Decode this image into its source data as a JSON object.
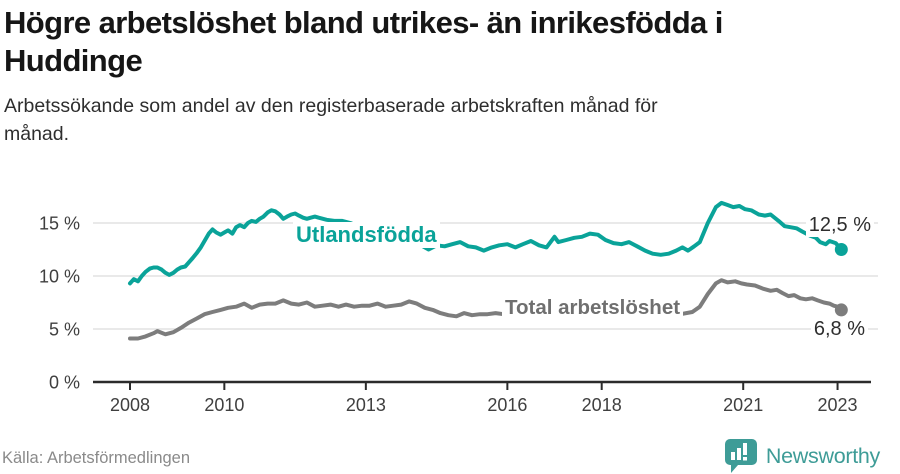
{
  "header": {
    "title_line1": "Högre arbetslöshet bland utrikes- än inrikesfödda i",
    "title_line2": "Huddinge",
    "subtitle_line1": "Arbetssökande som andel av den registerbaserade arbetskraften månad för",
    "subtitle_line2": "månad."
  },
  "footer": {
    "source": "Källa: Arbetsförmedlingen",
    "brand": "Newsworthy"
  },
  "colors": {
    "foreign_line": "#0aa399",
    "total_line": "#7d7d7d",
    "foreign_label": "#0aa399",
    "total_label": "#6f6f6f",
    "gridline": "#dcdcdc",
    "axis": "#2b2b2b",
    "axis_text": "#3f3f3f",
    "brand_teal": "#3e9c97"
  },
  "chart_data": {
    "type": "line",
    "title": "Högre arbetslöshet bland utrikes- än inrikesfödda i Huddinge",
    "subtitle": "Arbetssökande som andel av den registerbaserade arbetskraften månad för månad.",
    "xlabel": "",
    "ylabel": "",
    "grid": true,
    "legend": "inline-labels",
    "x_axis": {
      "ticks": [
        2008,
        2010,
        2013,
        2016,
        2018,
        2021,
        2023
      ],
      "tick_labels": [
        "2008",
        "2010",
        "2013",
        "2016",
        "2018",
        "2021",
        "2023"
      ],
      "range": [
        2007.6,
        2023.5
      ]
    },
    "y_axis": {
      "ticks": [
        0,
        5,
        10,
        15
      ],
      "tick_labels": [
        "0 %",
        "5 %",
        "10 %",
        "15 %"
      ],
      "range": [
        0,
        17.8
      ]
    },
    "series": [
      {
        "name": "Utlandsfödda",
        "color": "#0aa399",
        "end_label": "12,5 %",
        "end_value": 12.5,
        "points": [
          [
            2008.0,
            9.3
          ],
          [
            2008.08,
            9.7
          ],
          [
            2008.17,
            9.5
          ],
          [
            2008.25,
            10.0
          ],
          [
            2008.33,
            10.4
          ],
          [
            2008.42,
            10.7
          ],
          [
            2008.5,
            10.8
          ],
          [
            2008.58,
            10.8
          ],
          [
            2008.67,
            10.6
          ],
          [
            2008.75,
            10.3
          ],
          [
            2008.83,
            10.1
          ],
          [
            2008.92,
            10.3
          ],
          [
            2009.0,
            10.6
          ],
          [
            2009.08,
            10.8
          ],
          [
            2009.17,
            10.9
          ],
          [
            2009.25,
            11.3
          ],
          [
            2009.33,
            11.7
          ],
          [
            2009.42,
            12.2
          ],
          [
            2009.5,
            12.7
          ],
          [
            2009.58,
            13.3
          ],
          [
            2009.67,
            14.0
          ],
          [
            2009.75,
            14.4
          ],
          [
            2009.83,
            14.1
          ],
          [
            2009.92,
            13.9
          ],
          [
            2010.0,
            14.1
          ],
          [
            2010.08,
            14.3
          ],
          [
            2010.17,
            14.0
          ],
          [
            2010.25,
            14.6
          ],
          [
            2010.33,
            14.8
          ],
          [
            2010.42,
            14.6
          ],
          [
            2010.5,
            15.0
          ],
          [
            2010.58,
            15.2
          ],
          [
            2010.67,
            15.1
          ],
          [
            2010.75,
            15.4
          ],
          [
            2010.83,
            15.6
          ],
          [
            2010.92,
            16.0
          ],
          [
            2011.0,
            16.2
          ],
          [
            2011.08,
            16.1
          ],
          [
            2011.17,
            15.8
          ],
          [
            2011.25,
            15.4
          ],
          [
            2011.33,
            15.6
          ],
          [
            2011.42,
            15.8
          ],
          [
            2011.5,
            15.9
          ],
          [
            2011.58,
            15.7
          ],
          [
            2011.67,
            15.5
          ],
          [
            2011.75,
            15.4
          ],
          [
            2011.83,
            15.5
          ],
          [
            2011.92,
            15.6
          ],
          [
            2012.0,
            15.5
          ],
          [
            2012.17,
            15.3
          ],
          [
            2012.33,
            15.2
          ],
          [
            2012.5,
            15.2
          ],
          [
            2012.67,
            15.0
          ],
          [
            2012.83,
            14.7
          ],
          [
            2013.0,
            14.4
          ],
          [
            2013.17,
            14.1
          ],
          [
            2013.33,
            13.8
          ],
          [
            2013.5,
            13.5
          ],
          [
            2013.67,
            13.3
          ],
          [
            2013.83,
            13.1
          ],
          [
            2014.0,
            13.0
          ],
          [
            2014.17,
            12.9
          ],
          [
            2014.33,
            12.5
          ],
          [
            2014.5,
            12.9
          ],
          [
            2014.67,
            12.8
          ],
          [
            2014.83,
            13.0
          ],
          [
            2015.0,
            13.2
          ],
          [
            2015.17,
            12.8
          ],
          [
            2015.33,
            12.7
          ],
          [
            2015.5,
            12.4
          ],
          [
            2015.67,
            12.7
          ],
          [
            2015.83,
            12.9
          ],
          [
            2016.0,
            13.0
          ],
          [
            2016.17,
            12.7
          ],
          [
            2016.33,
            13.0
          ],
          [
            2016.5,
            13.3
          ],
          [
            2016.67,
            12.9
          ],
          [
            2016.83,
            12.7
          ],
          [
            2017.0,
            13.7
          ],
          [
            2017.08,
            13.2
          ],
          [
            2017.25,
            13.4
          ],
          [
            2017.42,
            13.6
          ],
          [
            2017.58,
            13.7
          ],
          [
            2017.75,
            14.0
          ],
          [
            2017.92,
            13.9
          ],
          [
            2018.08,
            13.4
          ],
          [
            2018.25,
            13.1
          ],
          [
            2018.42,
            13.0
          ],
          [
            2018.58,
            13.2
          ],
          [
            2018.75,
            12.8
          ],
          [
            2018.92,
            12.4
          ],
          [
            2019.08,
            12.1
          ],
          [
            2019.25,
            12.0
          ],
          [
            2019.42,
            12.1
          ],
          [
            2019.58,
            12.4
          ],
          [
            2019.71,
            12.7
          ],
          [
            2019.83,
            12.4
          ],
          [
            2019.96,
            12.8
          ],
          [
            2020.08,
            13.2
          ],
          [
            2020.25,
            15.0
          ],
          [
            2020.42,
            16.5
          ],
          [
            2020.54,
            16.9
          ],
          [
            2020.67,
            16.7
          ],
          [
            2020.79,
            16.5
          ],
          [
            2020.92,
            16.6
          ],
          [
            2021.04,
            16.3
          ],
          [
            2021.17,
            16.2
          ],
          [
            2021.33,
            15.8
          ],
          [
            2021.46,
            15.7
          ],
          [
            2021.58,
            15.8
          ],
          [
            2021.75,
            15.2
          ],
          [
            2021.88,
            14.7
          ],
          [
            2022.0,
            14.6
          ],
          [
            2022.13,
            14.5
          ],
          [
            2022.25,
            14.2
          ],
          [
            2022.42,
            13.8
          ],
          [
            2022.54,
            13.6
          ],
          [
            2022.63,
            13.2
          ],
          [
            2022.75,
            13.0
          ],
          [
            2022.83,
            13.3
          ],
          [
            2022.96,
            13.1
          ],
          [
            2023.08,
            12.5
          ]
        ]
      },
      {
        "name": "Total arbetslöshet",
        "color": "#7d7d7d",
        "end_label": "6,8 %",
        "end_value": 6.8,
        "points": [
          [
            2008.0,
            4.1
          ],
          [
            2008.17,
            4.1
          ],
          [
            2008.33,
            4.3
          ],
          [
            2008.5,
            4.6
          ],
          [
            2008.58,
            4.8
          ],
          [
            2008.75,
            4.5
          ],
          [
            2008.92,
            4.7
          ],
          [
            2009.08,
            5.1
          ],
          [
            2009.25,
            5.6
          ],
          [
            2009.42,
            6.0
          ],
          [
            2009.58,
            6.4
          ],
          [
            2009.75,
            6.6
          ],
          [
            2009.92,
            6.8
          ],
          [
            2010.08,
            7.0
          ],
          [
            2010.25,
            7.1
          ],
          [
            2010.42,
            7.4
          ],
          [
            2010.58,
            7.0
          ],
          [
            2010.75,
            7.3
          ],
          [
            2010.92,
            7.4
          ],
          [
            2011.08,
            7.4
          ],
          [
            2011.25,
            7.7
          ],
          [
            2011.42,
            7.4
          ],
          [
            2011.58,
            7.3
          ],
          [
            2011.75,
            7.5
          ],
          [
            2011.92,
            7.1
          ],
          [
            2012.08,
            7.2
          ],
          [
            2012.25,
            7.3
          ],
          [
            2012.42,
            7.1
          ],
          [
            2012.58,
            7.3
          ],
          [
            2012.75,
            7.1
          ],
          [
            2012.92,
            7.2
          ],
          [
            2013.08,
            7.2
          ],
          [
            2013.25,
            7.4
          ],
          [
            2013.42,
            7.1
          ],
          [
            2013.58,
            7.2
          ],
          [
            2013.75,
            7.3
          ],
          [
            2013.92,
            7.6
          ],
          [
            2014.08,
            7.4
          ],
          [
            2014.25,
            7.0
          ],
          [
            2014.42,
            6.8
          ],
          [
            2014.58,
            6.5
          ],
          [
            2014.75,
            6.3
          ],
          [
            2014.92,
            6.2
          ],
          [
            2015.08,
            6.5
          ],
          [
            2015.25,
            6.3
          ],
          [
            2015.42,
            6.4
          ],
          [
            2015.58,
            6.4
          ],
          [
            2015.75,
            6.5
          ],
          [
            2015.92,
            6.4
          ],
          [
            2016.17,
            6.3
          ],
          [
            2016.42,
            6.4
          ],
          [
            2016.67,
            6.3
          ],
          [
            2016.92,
            6.2
          ],
          [
            2017.17,
            6.3
          ],
          [
            2017.42,
            6.4
          ],
          [
            2017.67,
            6.5
          ],
          [
            2017.92,
            6.5
          ],
          [
            2018.17,
            6.4
          ],
          [
            2018.42,
            6.5
          ],
          [
            2018.67,
            6.4
          ],
          [
            2018.92,
            6.3
          ],
          [
            2019.17,
            6.2
          ],
          [
            2019.42,
            6.3
          ],
          [
            2019.67,
            6.4
          ],
          [
            2019.92,
            6.6
          ],
          [
            2020.08,
            7.1
          ],
          [
            2020.25,
            8.3
          ],
          [
            2020.42,
            9.3
          ],
          [
            2020.54,
            9.6
          ],
          [
            2020.67,
            9.4
          ],
          [
            2020.83,
            9.5
          ],
          [
            2020.96,
            9.3
          ],
          [
            2021.08,
            9.2
          ],
          [
            2021.25,
            9.1
          ],
          [
            2021.42,
            8.8
          ],
          [
            2021.58,
            8.6
          ],
          [
            2021.71,
            8.7
          ],
          [
            2021.83,
            8.4
          ],
          [
            2021.96,
            8.1
          ],
          [
            2022.08,
            8.2
          ],
          [
            2022.21,
            7.9
          ],
          [
            2022.33,
            7.8
          ],
          [
            2022.46,
            7.9
          ],
          [
            2022.58,
            7.7
          ],
          [
            2022.71,
            7.5
          ],
          [
            2022.83,
            7.4
          ],
          [
            2022.92,
            7.2
          ],
          [
            2023.0,
            7.1
          ],
          [
            2023.08,
            6.8
          ]
        ]
      }
    ]
  }
}
